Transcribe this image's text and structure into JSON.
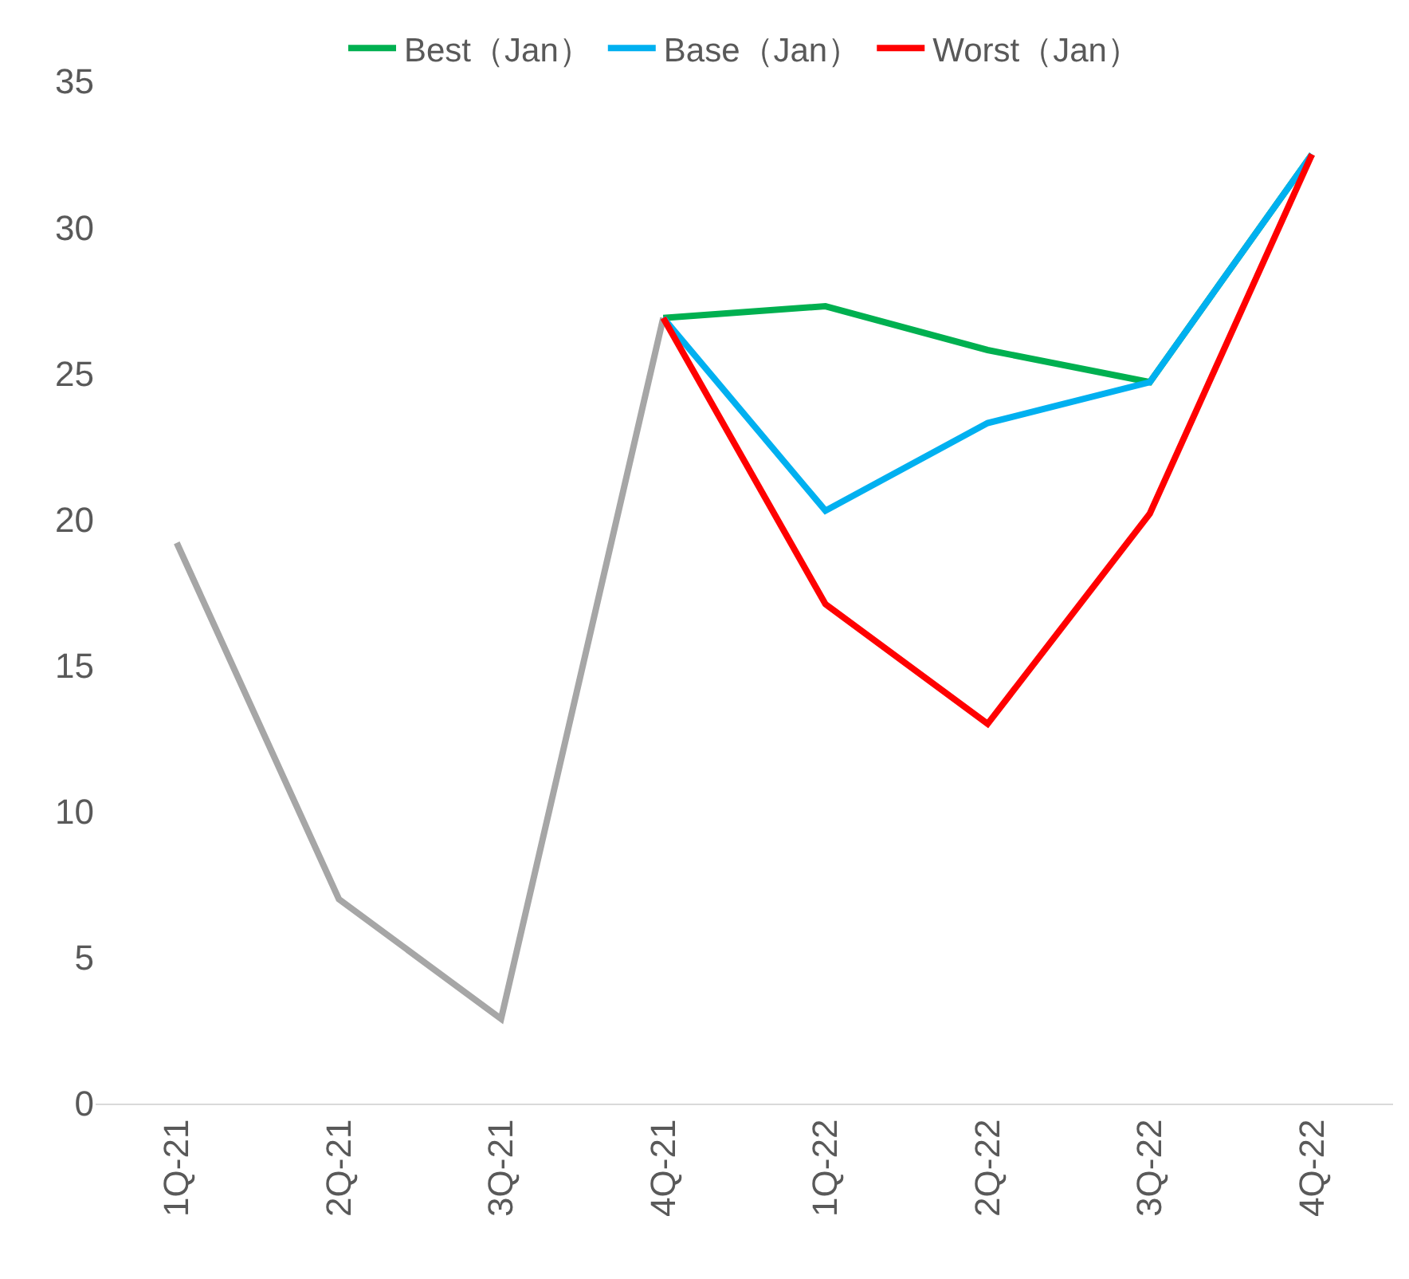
{
  "chart_data": {
    "type": "line",
    "categories": [
      "1Q-21",
      "2Q-21",
      "3Q-21",
      "4Q-21",
      "1Q-22",
      "2Q-22",
      "3Q-22",
      "4Q-22"
    ],
    "series": [
      {
        "color": "#a6a6a6",
        "values": [
          19.2,
          7.0,
          2.9,
          26.9,
          null,
          null,
          null,
          null
        ]
      },
      {
        "name": "Best（Jan）",
        "color": "#00b050",
        "values": [
          null,
          null,
          null,
          26.9,
          27.3,
          25.8,
          24.7,
          32.5
        ]
      },
      {
        "name": "Base（Jan）",
        "color": "#00b0f0",
        "values": [
          null,
          null,
          null,
          26.9,
          20.3,
          23.3,
          24.7,
          32.5
        ]
      },
      {
        "name": "Worst（Jan）",
        "color": "#ff0000",
        "values": [
          null,
          null,
          null,
          26.9,
          17.1,
          13.0,
          20.2,
          32.5
        ]
      }
    ],
    "ylim": [
      0,
      35
    ],
    "yticks": [
      0,
      5,
      10,
      15,
      20,
      25,
      30,
      35
    ],
    "grid": false,
    "legend": "top",
    "marker": "none",
    "line_style": "solid"
  }
}
